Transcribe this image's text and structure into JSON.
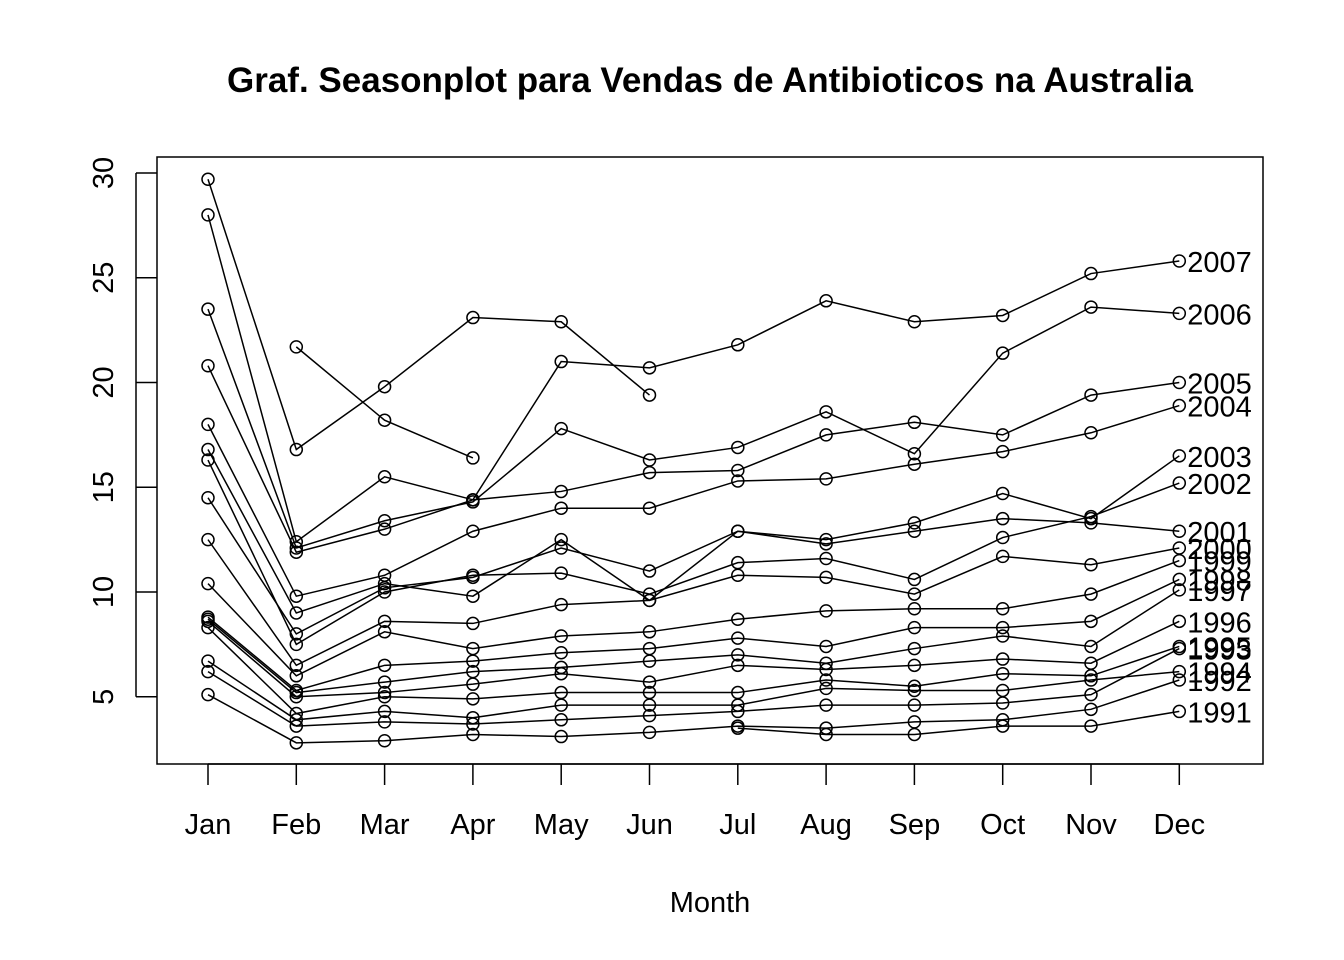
{
  "chart_data": {
    "type": "line",
    "title": "Graf. Seasonplot para Vendas de Antibioticos na Australia",
    "xlabel": "Month",
    "ylabel": "",
    "categories": [
      "Jan",
      "Feb",
      "Mar",
      "Apr",
      "May",
      "Jun",
      "Jul",
      "Aug",
      "Sep",
      "Oct",
      "Nov",
      "Dec"
    ],
    "yticks": [
      5,
      10,
      15,
      20,
      25,
      30
    ],
    "ylim": [
      3,
      30
    ],
    "grid": false,
    "legend": "labels at right end of each line",
    "series": [
      {
        "name": "1991",
        "values": [
          null,
          null,
          null,
          null,
          null,
          null,
          3.5,
          3.2,
          3.2,
          3.6,
          3.6,
          4.3
        ]
      },
      {
        "name": "1992",
        "values": [
          5.1,
          2.8,
          2.9,
          3.2,
          3.1,
          3.3,
          3.6,
          3.5,
          3.8,
          3.9,
          4.4,
          5.8
        ]
      },
      {
        "name": "1993",
        "values": [
          6.2,
          3.6,
          3.8,
          3.7,
          3.9,
          4.1,
          4.3,
          4.6,
          4.6,
          4.7,
          5.1,
          7.3
        ]
      },
      {
        "name": "1994",
        "values": [
          6.7,
          3.9,
          4.3,
          4.0,
          4.6,
          4.6,
          4.6,
          5.4,
          5.3,
          5.3,
          5.8,
          6.2
        ]
      },
      {
        "name": "1995",
        "values": [
          8.3,
          4.2,
          5.0,
          4.9,
          5.2,
          5.2,
          5.2,
          5.8,
          5.5,
          6.1,
          6.0,
          7.4
        ]
      },
      {
        "name": "1996",
        "values": [
          8.6,
          5.0,
          5.2,
          5.6,
          6.1,
          5.7,
          6.5,
          6.3,
          6.5,
          6.8,
          6.6,
          8.6
        ]
      },
      {
        "name": "1997",
        "values": [
          8.7,
          5.2,
          5.7,
          6.2,
          6.4,
          6.7,
          7.0,
          6.6,
          7.3,
          7.9,
          7.4,
          10.1
        ]
      },
      {
        "name": "1998",
        "values": [
          8.8,
          5.3,
          6.5,
          6.7,
          7.1,
          7.3,
          7.8,
          7.4,
          8.3,
          8.3,
          8.6,
          10.6
        ]
      },
      {
        "name": "1999",
        "values": [
          10.4,
          6.0,
          8.1,
          7.3,
          7.9,
          8.1,
          8.7,
          9.1,
          9.2,
          9.2,
          9.9,
          11.5
        ]
      },
      {
        "name": "2000",
        "values": [
          12.5,
          6.5,
          8.6,
          8.5,
          9.4,
          9.6,
          10.8,
          10.7,
          9.9,
          11.7,
          11.3,
          12.1
        ]
      },
      {
        "name": "2001",
        "values": [
          14.5,
          8.0,
          10.2,
          10.7,
          12.1,
          11.0,
          12.9,
          12.3,
          12.9,
          13.5,
          13.3,
          12.9
        ]
      },
      {
        "name": "2002",
        "values": [
          16.3,
          7.5,
          10.0,
          10.8,
          10.9,
          9.9,
          11.4,
          11.6,
          10.6,
          12.6,
          13.6,
          15.2
        ]
      },
      {
        "name": "2003",
        "values": [
          16.8,
          9.0,
          10.4,
          9.8,
          12.5,
          9.6,
          12.9,
          12.5,
          13.3,
          14.7,
          13.5,
          16.5
        ]
      },
      {
        "name": "2004",
        "values": [
          18.0,
          9.8,
          10.8,
          12.9,
          14.0,
          14.0,
          15.3,
          15.4,
          16.1,
          16.7,
          17.6,
          18.9
        ]
      },
      {
        "name": "2005",
        "values": [
          20.8,
          11.9,
          13.0,
          14.4,
          14.8,
          15.7,
          15.8,
          17.5,
          18.1,
          17.5,
          19.4,
          20.0
        ]
      },
      {
        "name": "2006",
        "values": [
          23.5,
          12.1,
          13.4,
          14.3,
          17.8,
          16.3,
          16.9,
          18.6,
          16.6,
          21.4,
          23.6,
          23.3
        ]
      },
      {
        "name": "2007",
        "values": [
          28.0,
          12.4,
          15.5,
          14.4,
          21.0,
          20.7,
          21.8,
          23.9,
          22.9,
          23.2,
          25.2,
          25.8
        ]
      },
      {
        "name": "",
        "values": [
          29.7,
          16.8,
          19.8,
          23.1,
          22.9,
          19.4,
          null,
          null,
          null,
          null,
          null,
          null
        ]
      },
      {
        "name": "",
        "values": [
          null,
          21.7,
          18.2,
          16.4,
          null,
          null,
          null,
          null,
          null,
          null,
          null,
          null
        ]
      }
    ]
  }
}
